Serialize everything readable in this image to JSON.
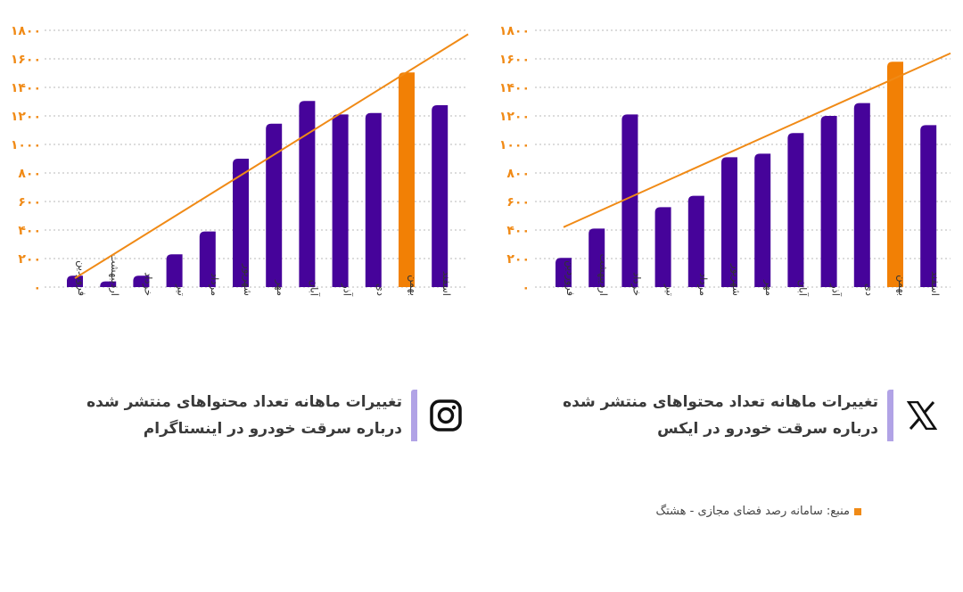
{
  "colors": {
    "bar": "#46039a",
    "highlight": "#f28005",
    "trend": "#f08a16",
    "accent_bar": "#b1a3e6"
  },
  "chart_data": [
    {
      "id": "instagram",
      "type": "bar",
      "title": "تغییرات ماهانه تعداد محتواهای منتشر شده درباره سرقت خودرو در اینستاگرام",
      "categories": [
        "فروردین",
        "اردیبهشت",
        "خرداد",
        "تیر",
        "مرداد",
        "شهریور",
        "مهر",
        "آبان",
        "آذر",
        "دی",
        "بهمن",
        "اسفند"
      ],
      "values": [
        80,
        40,
        80,
        230,
        390,
        900,
        1145,
        1305,
        1210,
        1220,
        1505,
        1275
      ],
      "highlight_index": 10,
      "trendline": {
        "start": 62,
        "end": 1505
      },
      "ylim": [
        0,
        1800
      ],
      "yticks": [
        "۰",
        "۲۰۰",
        "۴۰۰",
        "۶۰۰",
        "۸۰۰",
        "۱۰۰۰",
        "۱۲۰۰",
        "۱۴۰۰",
        "۱۶۰۰",
        "۱۸۰۰"
      ],
      "ytick_values": [
        0,
        200,
        400,
        600,
        800,
        1000,
        1200,
        1400,
        1600,
        1800
      ],
      "grid": true,
      "xlabel": "",
      "ylabel": ""
    },
    {
      "id": "x",
      "type": "bar",
      "title": "تغییرات ماهانه تعداد محتواهای منتشر شده درباره سرقت خودرو در ایکس",
      "categories": [
        "فروردین",
        "اردیبهشت",
        "خرداد",
        "تیر",
        "مرداد",
        "شهریور",
        "مهر",
        "آبان",
        "آذر",
        "دی",
        "بهمن",
        "اسفند"
      ],
      "values": [
        205,
        410,
        1210,
        560,
        640,
        910,
        935,
        1080,
        1200,
        1290,
        1580,
        1135
      ],
      "highlight_index": 10,
      "trendline": {
        "start": 420,
        "end": 1465
      },
      "ylim": [
        0,
        1800
      ],
      "yticks": [
        "۰",
        "۲۰۰",
        "۴۰۰",
        "۶۰۰",
        "۸۰۰",
        "۱۰۰۰",
        "۱۲۰۰",
        "۱۴۰۰",
        "۱۶۰۰",
        "۱۸۰۰"
      ],
      "ytick_values": [
        0,
        200,
        400,
        600,
        800,
        1000,
        1200,
        1400,
        1600,
        1800
      ],
      "grid": true,
      "xlabel": "",
      "ylabel": ""
    }
  ],
  "captions": {
    "instagram": {
      "line1": "تغییرات ماهانه تعداد محتواهای منتشر شده",
      "line2": "درباره سرقت خودرو در اینستاگرام",
      "icon": "instagram-icon"
    },
    "x": {
      "line1": "تغییرات ماهانه تعداد محتواهای منتشر شده",
      "line2": "درباره سرقت خودرو در ایکس",
      "icon": "x-logo-icon"
    }
  },
  "source": "منبع: سامانه رصد فضای مجازی - هشتگ"
}
